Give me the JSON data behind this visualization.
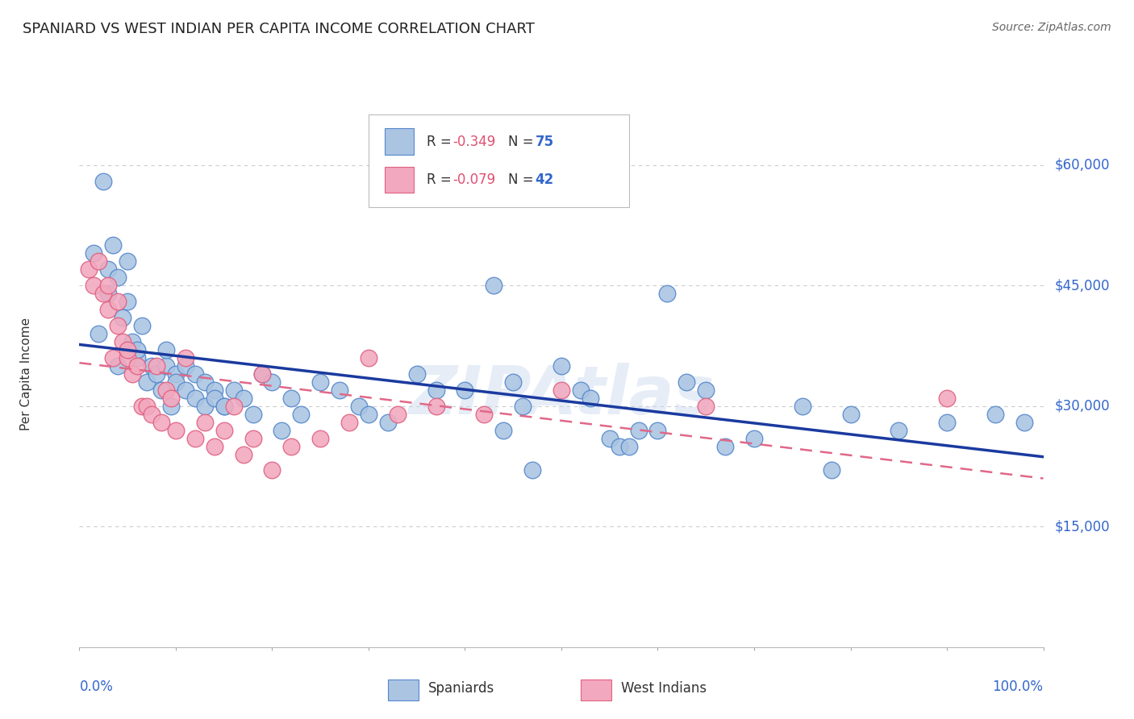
{
  "title": "SPANIARD VS WEST INDIAN PER CAPITA INCOME CORRELATION CHART",
  "source_text": "Source: ZipAtlas.com",
  "ylabel": "Per Capita Income",
  "y_ticks": [
    0,
    15000,
    30000,
    45000,
    60000
  ],
  "y_tick_labels": [
    "",
    "$15,000",
    "$30,000",
    "$45,000",
    "$60,000"
  ],
  "xlim": [
    0.0,
    1.0
  ],
  "ylim": [
    0,
    68000
  ],
  "spaniard_color": "#aac4e2",
  "west_indian_color": "#f2a8be",
  "spaniard_edge_color": "#5588cc",
  "west_indian_edge_color": "#e06080",
  "line_blue": "#1a3a9f",
  "line_pink": "#e06888",
  "R_spaniard": -0.349,
  "N_spaniard": 75,
  "R_west_indian": -0.079,
  "N_west_indian": 42,
  "legend_label_spaniard": "Spaniards",
  "legend_label_west_indian": "West Indians",
  "background_color": "#ffffff",
  "grid_color": "#cccccc",
  "title_color": "#222222",
  "axis_label_color": "#3366cc",
  "watermark": "ZIPAtlas",
  "spaniard_x": [
    0.015,
    0.02,
    0.025,
    0.03,
    0.03,
    0.035,
    0.04,
    0.04,
    0.045,
    0.05,
    0.05,
    0.055,
    0.06,
    0.06,
    0.065,
    0.07,
    0.075,
    0.08,
    0.085,
    0.09,
    0.09,
    0.095,
    0.1,
    0.1,
    0.11,
    0.11,
    0.12,
    0.12,
    0.13,
    0.13,
    0.14,
    0.14,
    0.15,
    0.15,
    0.16,
    0.17,
    0.18,
    0.19,
    0.2,
    0.21,
    0.22,
    0.23,
    0.25,
    0.27,
    0.29,
    0.3,
    0.32,
    0.35,
    0.37,
    0.4,
    0.43,
    0.44,
    0.45,
    0.46,
    0.47,
    0.5,
    0.52,
    0.53,
    0.55,
    0.56,
    0.57,
    0.58,
    0.6,
    0.61,
    0.63,
    0.65,
    0.67,
    0.7,
    0.75,
    0.78,
    0.8,
    0.85,
    0.9,
    0.95,
    0.98
  ],
  "spaniard_y": [
    49000,
    39000,
    58000,
    47000,
    44000,
    50000,
    46000,
    35000,
    41000,
    48000,
    43000,
    38000,
    36000,
    37000,
    40000,
    33000,
    35000,
    34000,
    32000,
    35000,
    37000,
    30000,
    34000,
    33000,
    32000,
    35000,
    31000,
    34000,
    30000,
    33000,
    32000,
    31000,
    30000,
    30000,
    32000,
    31000,
    29000,
    34000,
    33000,
    27000,
    31000,
    29000,
    33000,
    32000,
    30000,
    29000,
    28000,
    34000,
    32000,
    32000,
    45000,
    27000,
    33000,
    30000,
    22000,
    35000,
    32000,
    31000,
    26000,
    25000,
    25000,
    27000,
    27000,
    44000,
    33000,
    32000,
    25000,
    26000,
    30000,
    22000,
    29000,
    27000,
    28000,
    29000,
    28000
  ],
  "west_indian_x": [
    0.01,
    0.015,
    0.02,
    0.025,
    0.03,
    0.03,
    0.035,
    0.04,
    0.04,
    0.045,
    0.05,
    0.05,
    0.055,
    0.06,
    0.065,
    0.07,
    0.075,
    0.08,
    0.085,
    0.09,
    0.095,
    0.1,
    0.11,
    0.12,
    0.13,
    0.14,
    0.15,
    0.16,
    0.17,
    0.18,
    0.19,
    0.2,
    0.22,
    0.25,
    0.28,
    0.3,
    0.33,
    0.37,
    0.42,
    0.5,
    0.65,
    0.9
  ],
  "west_indian_y": [
    47000,
    45000,
    48000,
    44000,
    45000,
    42000,
    36000,
    40000,
    43000,
    38000,
    36000,
    37000,
    34000,
    35000,
    30000,
    30000,
    29000,
    35000,
    28000,
    32000,
    31000,
    27000,
    36000,
    26000,
    28000,
    25000,
    27000,
    30000,
    24000,
    26000,
    34000,
    22000,
    25000,
    26000,
    28000,
    36000,
    29000,
    30000,
    29000,
    32000,
    30000,
    31000
  ]
}
